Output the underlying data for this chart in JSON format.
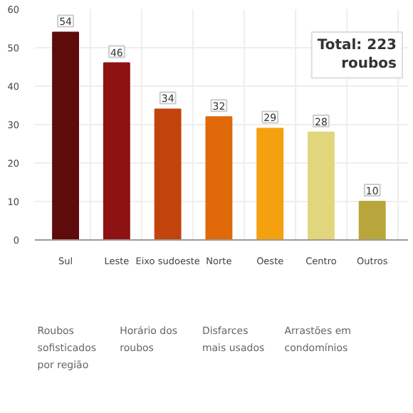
{
  "chart_data": {
    "type": "bar",
    "categories": [
      "Sul",
      "Leste",
      "Eixo sudoeste",
      "Norte",
      "Oeste",
      "Centro",
      "Outros"
    ],
    "values": [
      54,
      46,
      34,
      32,
      29,
      28,
      10
    ],
    "colors": [
      "#5e0b0b",
      "#8e1212",
      "#c2440c",
      "#e0690a",
      "#f4a00f",
      "#e2d67c",
      "#b8a63c"
    ],
    "ylim": [
      0,
      60
    ],
    "yticks": [
      0,
      10,
      20,
      30,
      40,
      50,
      60
    ],
    "grid": true,
    "data_labels": true,
    "annotations": [
      "Total: 223 roubos",
      "Roubos sofisticados por região",
      "Horário dos roubos",
      "Disfarces mais usados",
      "Arrastões em condomínios"
    ]
  }
}
